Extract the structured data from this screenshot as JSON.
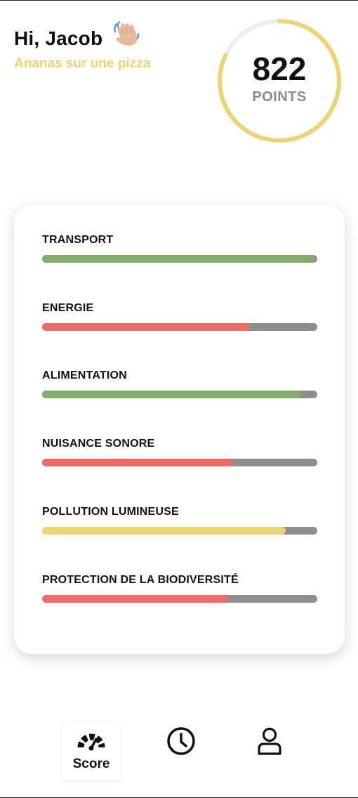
{
  "header": {
    "greeting": "Hi, Jacob",
    "subtitle": "Ananas sur une pizza"
  },
  "score": {
    "value": "822",
    "label": "POINTS",
    "ring_progress": 0.82,
    "ring_color": "#ecd373",
    "ring_track_color": "#eeeeee"
  },
  "categories": [
    {
      "label": "TRANSPORT",
      "progress": 0.99,
      "color": "#82ad6a"
    },
    {
      "label": "ENERGIE",
      "progress": 0.755,
      "color": "#f06b66"
    },
    {
      "label": "ALIMENTATION",
      "progress": 0.94,
      "color": "#82ad6a"
    },
    {
      "label": "NUISANCE SONORE",
      "progress": 0.695,
      "color": "#f06b66"
    },
    {
      "label": "POLLUTION LUMINEUSE",
      "progress": 0.885,
      "color": "#ecd373"
    },
    {
      "label": "PROTECTION DE LA BIODIVERSITÉ",
      "progress": 0.675,
      "color": "#f06b66"
    }
  ],
  "nav": {
    "items": [
      {
        "label": "Score",
        "icon": "gauge-icon",
        "active": true
      },
      {
        "label": "",
        "icon": "clock-icon",
        "active": false
      },
      {
        "label": "",
        "icon": "user-icon",
        "active": false
      }
    ]
  }
}
